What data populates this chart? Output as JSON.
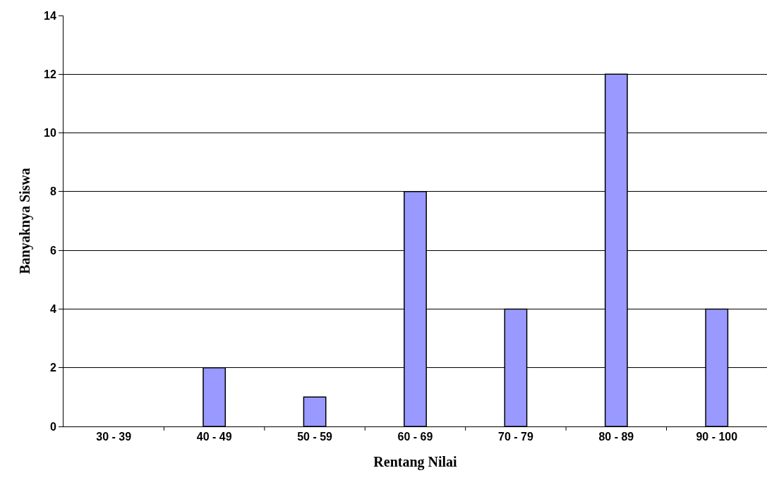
{
  "chart_data": {
    "type": "bar",
    "xlabel": "Rentang Nilai",
    "ylabel": "Banyaknya Siswa",
    "categories": [
      "30 - 39",
      "40 - 49",
      "50 - 59",
      "60 - 69",
      "70 - 79",
      "80 - 89",
      "90 - 100"
    ],
    "values": [
      0,
      2,
      1,
      8,
      4,
      12,
      4
    ],
    "color": "#9999ff",
    "ylim": [
      0,
      14
    ],
    "yticks": [
      0,
      2,
      4,
      6,
      8,
      10,
      12,
      14
    ],
    "grid": "y"
  }
}
